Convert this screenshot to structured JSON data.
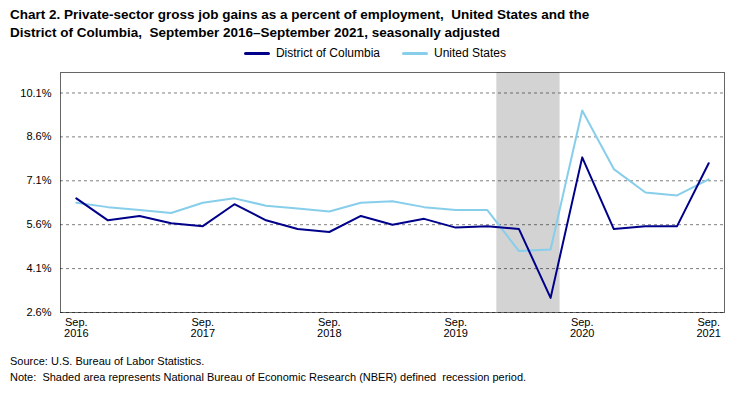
{
  "chart_data": {
    "type": "line",
    "title": "Chart 2. Private-sector gross job gains as a percent of employment,  United States and the\nDistrict of Columbia,  September 2016–September 2021, seasonally adjusted",
    "caption": "Source: U.S. Bureau of Labor Statistics.\nNote:  Shaded area represents National Bureau of Economic Research (NBER) defined  recession period.",
    "categories": [
      "Sep.\n2016",
      null,
      null,
      null,
      "Sep.\n2017",
      null,
      null,
      null,
      "Sep.\n2018",
      null,
      null,
      null,
      "Sep.\n2019",
      null,
      null,
      null,
      "Sep.\n2020",
      null,
      null,
      null,
      "Sep.\n2021"
    ],
    "series": [
      {
        "name": "District of Columbia",
        "color": "#00008B",
        "values": [
          6.5,
          5.75,
          5.9,
          5.65,
          5.55,
          6.3,
          5.75,
          5.45,
          5.35,
          5.9,
          5.6,
          5.8,
          5.5,
          5.55,
          5.45,
          3.1,
          7.9,
          5.45,
          5.55,
          5.55,
          7.7
        ]
      },
      {
        "name": "United States",
        "color": "#87CEEB",
        "values": [
          6.35,
          6.2,
          6.1,
          6.0,
          6.35,
          6.5,
          6.25,
          6.15,
          6.05,
          6.35,
          6.4,
          6.2,
          6.1,
          6.1,
          4.7,
          4.75,
          9.5,
          7.5,
          6.7,
          6.6,
          7.15
        ]
      }
    ],
    "recession": {
      "start": 13.3,
      "end": 15.3,
      "color": "#D3D3D3"
    },
    "ylim": [
      2.6,
      10.8
    ],
    "yticks": [
      {
        "value": 2.6,
        "label": "2.6%"
      },
      {
        "value": 4.1,
        "label": "4.1%"
      },
      {
        "value": 5.6,
        "label": "5.6%"
      },
      {
        "value": 7.1,
        "label": "7.1%"
      },
      {
        "value": 8.6,
        "label": "8.6%"
      },
      {
        "value": 10.1,
        "label": "10.1%"
      }
    ],
    "grid": true,
    "legend": "top"
  }
}
